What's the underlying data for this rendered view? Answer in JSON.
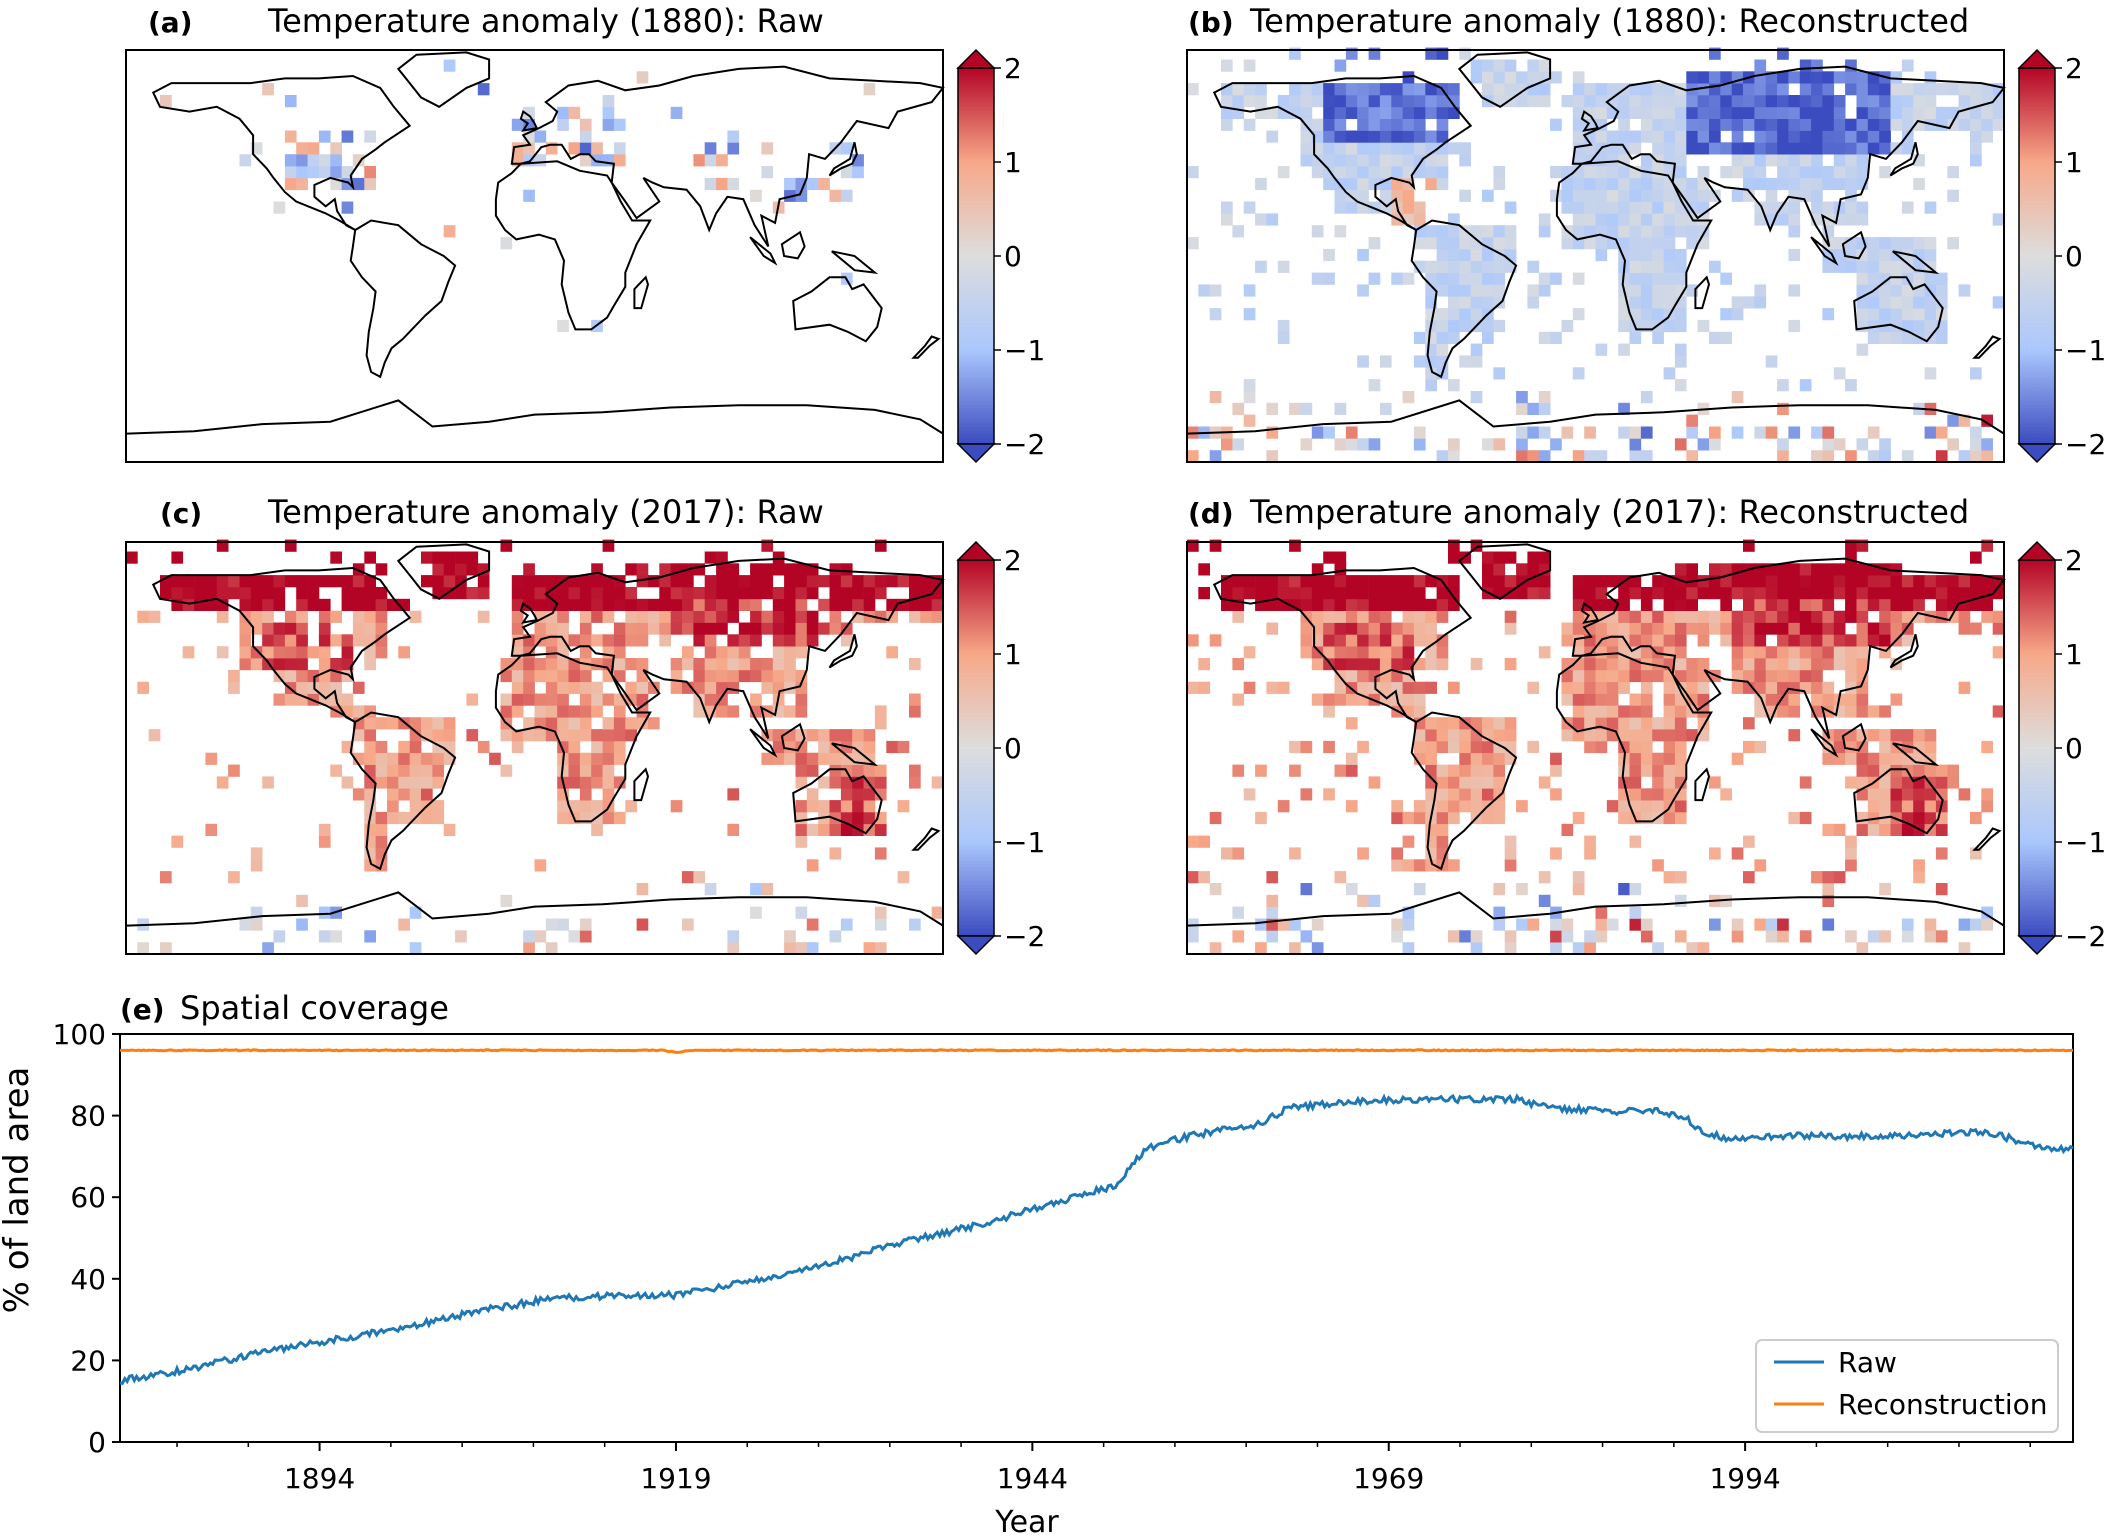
{
  "chart_data": [
    {
      "panel_label": "(a)",
      "title": "Temperature anomaly (1880): Raw",
      "type": "heatmap",
      "colorbar_ticks": [
        "2",
        "1",
        "0",
        "−1",
        "−2"
      ],
      "colorbar_range": [
        -2,
        2
      ],
      "colormap": [
        "#3b4cc0",
        "#aac7fd",
        "#dddddd",
        "#f7a889",
        "#b40426"
      ]
    },
    {
      "panel_label": "(b)",
      "title": "Temperature anomaly (1880): Reconstructed",
      "type": "heatmap",
      "colorbar_ticks": [
        "2",
        "1",
        "0",
        "−1",
        "−2"
      ],
      "colorbar_range": [
        -2,
        2
      ],
      "colormap": [
        "#3b4cc0",
        "#aac7fd",
        "#dddddd",
        "#f7a889",
        "#b40426"
      ]
    },
    {
      "panel_label": "(c)",
      "title": "Temperature anomaly (2017): Raw",
      "type": "heatmap",
      "colorbar_ticks": [
        "2",
        "1",
        "0",
        "−1",
        "−2"
      ],
      "colorbar_range": [
        -2,
        2
      ],
      "colormap": [
        "#3b4cc0",
        "#aac7fd",
        "#dddddd",
        "#f7a889",
        "#b40426"
      ]
    },
    {
      "panel_label": "(d)",
      "title": "Temperature anomaly (2017): Reconstructed",
      "type": "heatmap",
      "colorbar_ticks": [
        "2",
        "1",
        "0",
        "−1",
        "−2"
      ],
      "colorbar_range": [
        -2,
        2
      ],
      "colormap": [
        "#3b4cc0",
        "#aac7fd",
        "#dddddd",
        "#f7a889",
        "#b40426"
      ]
    },
    {
      "panel_label": "(e)",
      "title": "Spatial coverage",
      "type": "line",
      "xlabel": "Year",
      "ylabel": "% of land area",
      "xlim": [
        1880,
        2017
      ],
      "ylim": [
        0,
        100
      ],
      "xticks": [
        1894,
        1919,
        1944,
        1969,
        1994
      ],
      "yticks": [
        0,
        20,
        40,
        60,
        80,
        100
      ],
      "legend_position": "lower-right",
      "series": [
        {
          "name": "Raw",
          "color": "#1f77b4",
          "x": [
            1880,
            1885,
            1890,
            1895,
            1900,
            1905,
            1910,
            1915,
            1919,
            1922,
            1925,
            1930,
            1935,
            1940,
            1945,
            1950,
            1951,
            1952,
            1955,
            1960,
            1962,
            1965,
            1970,
            1975,
            1978,
            1980,
            1985,
            1988,
            1990,
            1991,
            1993,
            1995,
            2000,
            2005,
            2010,
            2012,
            2015,
            2017
          ],
          "y": [
            15,
            18,
            22,
            25,
            28,
            32,
            35,
            36,
            36,
            38,
            40,
            44,
            49,
            53,
            58,
            63,
            68,
            72,
            75,
            78,
            82,
            83,
            84,
            84,
            84,
            82,
            81,
            81,
            79,
            76,
            74,
            75,
            75,
            75,
            76,
            75,
            72,
            72
          ]
        },
        {
          "name": "Reconstruction",
          "color": "#ff7f0e",
          "x": [
            1880,
            1918,
            1919,
            1920,
            2017
          ],
          "y": [
            96,
            96,
            95.5,
            96,
            96
          ]
        }
      ]
    }
  ]
}
